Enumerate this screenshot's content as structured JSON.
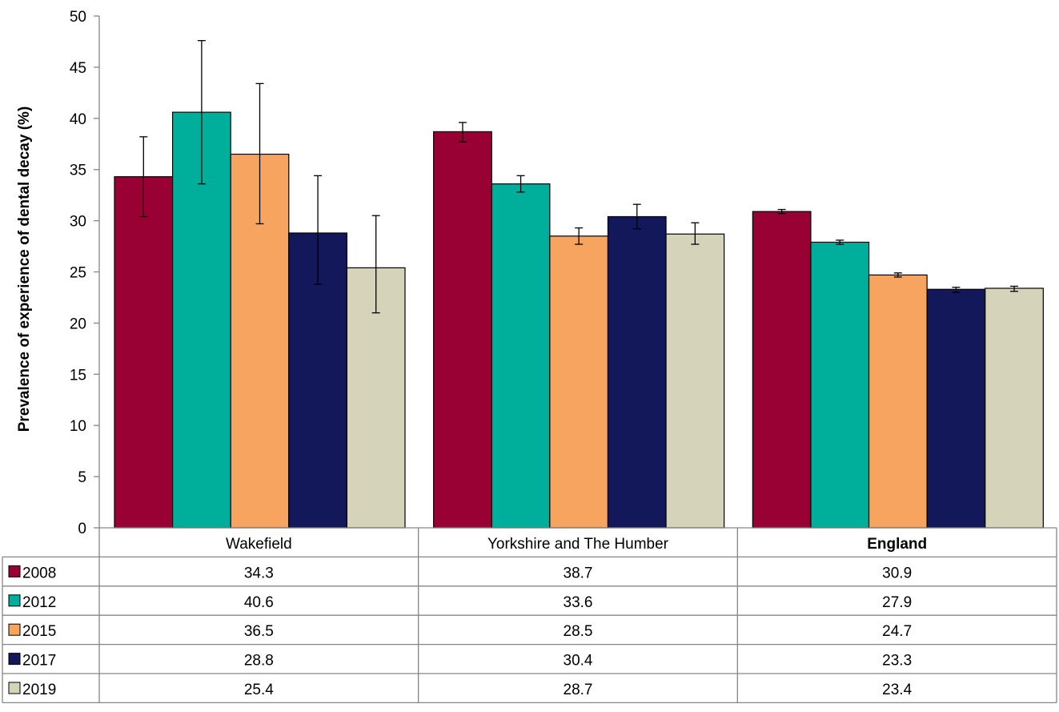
{
  "chart_data": {
    "type": "bar",
    "ylabel": "Prevalence of experience of dental decay (%)",
    "xlabel": "",
    "ylim": [
      0,
      50
    ],
    "yticks": [
      0,
      5,
      10,
      15,
      20,
      25,
      30,
      35,
      40,
      45,
      50
    ],
    "grid": false,
    "legend": "data-table-left",
    "categories": [
      "Wakefield",
      "Yorkshire and The Humber",
      "England"
    ],
    "bold_categories": [
      "England"
    ],
    "series": [
      {
        "name": "2008",
        "color": "#990033",
        "values": [
          34.3,
          38.7,
          30.9
        ],
        "ci_low": [
          30.4,
          37.7,
          30.7
        ],
        "ci_high": [
          38.2,
          39.6,
          31.1
        ]
      },
      {
        "name": "2012",
        "color": "#00ae9c",
        "values": [
          40.6,
          33.6,
          27.9
        ],
        "ci_low": [
          33.6,
          32.8,
          27.7
        ],
        "ci_high": [
          47.6,
          34.4,
          28.1
        ]
      },
      {
        "name": "2015",
        "color": "#f8a461",
        "values": [
          36.5,
          28.5,
          24.7
        ],
        "ci_low": [
          29.7,
          27.7,
          24.5
        ],
        "ci_high": [
          43.4,
          29.3,
          24.9
        ]
      },
      {
        "name": "2017",
        "color": "#13185a",
        "values": [
          28.8,
          30.4,
          23.3
        ],
        "ci_low": [
          23.8,
          29.2,
          23.0
        ],
        "ci_high": [
          34.4,
          31.6,
          23.5
        ]
      },
      {
        "name": "2019",
        "color": "#d5d3b9",
        "values": [
          25.4,
          28.7,
          23.4
        ],
        "ci_low": [
          21.0,
          27.7,
          23.1
        ],
        "ci_high": [
          30.5,
          29.8,
          23.6
        ]
      }
    ]
  }
}
